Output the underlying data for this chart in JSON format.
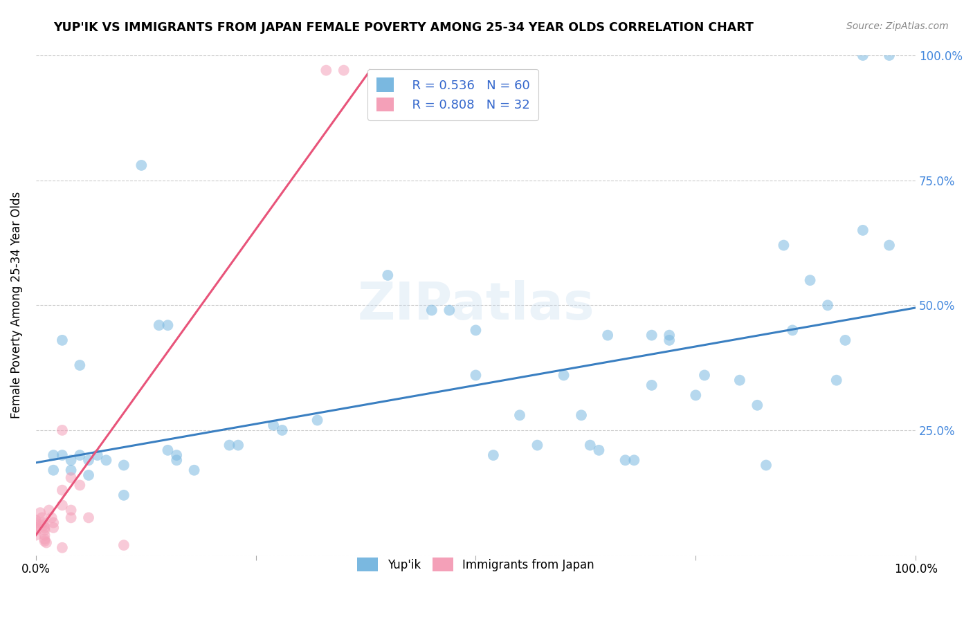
{
  "title": "YUP'IK VS IMMIGRANTS FROM JAPAN FEMALE POVERTY AMONG 25-34 YEAR OLDS CORRELATION CHART",
  "source": "Source: ZipAtlas.com",
  "ylabel": "Female Poverty Among 25-34 Year Olds",
  "xlim": [
    0,
    1
  ],
  "ylim": [
    0,
    1
  ],
  "xticks": [
    0.0,
    0.25,
    0.5,
    0.75,
    1.0
  ],
  "xticklabels": [
    "0.0%",
    "",
    "",
    "",
    "100.0%"
  ],
  "ytick_positions": [
    0.0,
    0.25,
    0.5,
    0.75,
    1.0
  ],
  "right_yticklabels": [
    "",
    "25.0%",
    "50.0%",
    "75.0%",
    "100.0%"
  ],
  "blue_R": "0.536",
  "blue_N": "60",
  "pink_R": "0.808",
  "pink_N": "32",
  "blue_color": "#7ab8e0",
  "pink_color": "#f4a0b8",
  "blue_line_color": "#3a7fc1",
  "pink_line_color": "#e8547a",
  "watermark": "ZIPatlas",
  "blue_points": [
    [
      0.02,
      0.2
    ],
    [
      0.02,
      0.17
    ],
    [
      0.03,
      0.43
    ],
    [
      0.03,
      0.2
    ],
    [
      0.04,
      0.19
    ],
    [
      0.04,
      0.17
    ],
    [
      0.05,
      0.38
    ],
    [
      0.05,
      0.2
    ],
    [
      0.06,
      0.19
    ],
    [
      0.06,
      0.16
    ],
    [
      0.07,
      0.2
    ],
    [
      0.08,
      0.19
    ],
    [
      0.1,
      0.12
    ],
    [
      0.1,
      0.18
    ],
    [
      0.12,
      0.78
    ],
    [
      0.14,
      0.46
    ],
    [
      0.15,
      0.46
    ],
    [
      0.15,
      0.21
    ],
    [
      0.16,
      0.2
    ],
    [
      0.16,
      0.19
    ],
    [
      0.18,
      0.17
    ],
    [
      0.22,
      0.22
    ],
    [
      0.23,
      0.22
    ],
    [
      0.27,
      0.26
    ],
    [
      0.28,
      0.25
    ],
    [
      0.32,
      0.27
    ],
    [
      0.4,
      0.56
    ],
    [
      0.45,
      0.49
    ],
    [
      0.47,
      0.49
    ],
    [
      0.5,
      0.45
    ],
    [
      0.5,
      0.36
    ],
    [
      0.52,
      0.2
    ],
    [
      0.55,
      0.28
    ],
    [
      0.57,
      0.22
    ],
    [
      0.6,
      0.36
    ],
    [
      0.62,
      0.28
    ],
    [
      0.63,
      0.22
    ],
    [
      0.64,
      0.21
    ],
    [
      0.65,
      0.44
    ],
    [
      0.67,
      0.19
    ],
    [
      0.68,
      0.19
    ],
    [
      0.7,
      0.34
    ],
    [
      0.7,
      0.44
    ],
    [
      0.72,
      0.43
    ],
    [
      0.72,
      0.44
    ],
    [
      0.75,
      0.32
    ],
    [
      0.76,
      0.36
    ],
    [
      0.8,
      0.35
    ],
    [
      0.82,
      0.3
    ],
    [
      0.83,
      0.18
    ],
    [
      0.85,
      0.62
    ],
    [
      0.86,
      0.45
    ],
    [
      0.88,
      0.55
    ],
    [
      0.9,
      0.5
    ],
    [
      0.91,
      0.35
    ],
    [
      0.92,
      0.43
    ],
    [
      0.94,
      1.0
    ],
    [
      0.94,
      0.65
    ],
    [
      0.97,
      1.0
    ],
    [
      0.97,
      0.62
    ]
  ],
  "pink_points": [
    [
      0.0,
      0.07
    ],
    [
      0.0,
      0.065
    ],
    [
      0.0,
      0.06
    ],
    [
      0.0,
      0.055
    ],
    [
      0.0,
      0.05
    ],
    [
      0.0,
      0.04
    ],
    [
      0.005,
      0.085
    ],
    [
      0.007,
      0.075
    ],
    [
      0.008,
      0.065
    ],
    [
      0.009,
      0.06
    ],
    [
      0.01,
      0.055
    ],
    [
      0.01,
      0.05
    ],
    [
      0.01,
      0.04
    ],
    [
      0.01,
      0.032
    ],
    [
      0.01,
      0.028
    ],
    [
      0.012,
      0.025
    ],
    [
      0.015,
      0.09
    ],
    [
      0.018,
      0.075
    ],
    [
      0.02,
      0.065
    ],
    [
      0.02,
      0.055
    ],
    [
      0.03,
      0.25
    ],
    [
      0.03,
      0.13
    ],
    [
      0.03,
      0.1
    ],
    [
      0.04,
      0.155
    ],
    [
      0.04,
      0.09
    ],
    [
      0.04,
      0.075
    ],
    [
      0.05,
      0.14
    ],
    [
      0.06,
      0.075
    ],
    [
      0.33,
      0.97
    ],
    [
      0.35,
      0.97
    ],
    [
      0.1,
      0.02
    ],
    [
      0.03,
      0.015
    ]
  ],
  "blue_line_x": [
    0.0,
    1.0
  ],
  "blue_line_y": [
    0.185,
    0.495
  ],
  "pink_line_x": [
    0.0,
    0.38
  ],
  "pink_line_y": [
    0.04,
    0.97
  ]
}
